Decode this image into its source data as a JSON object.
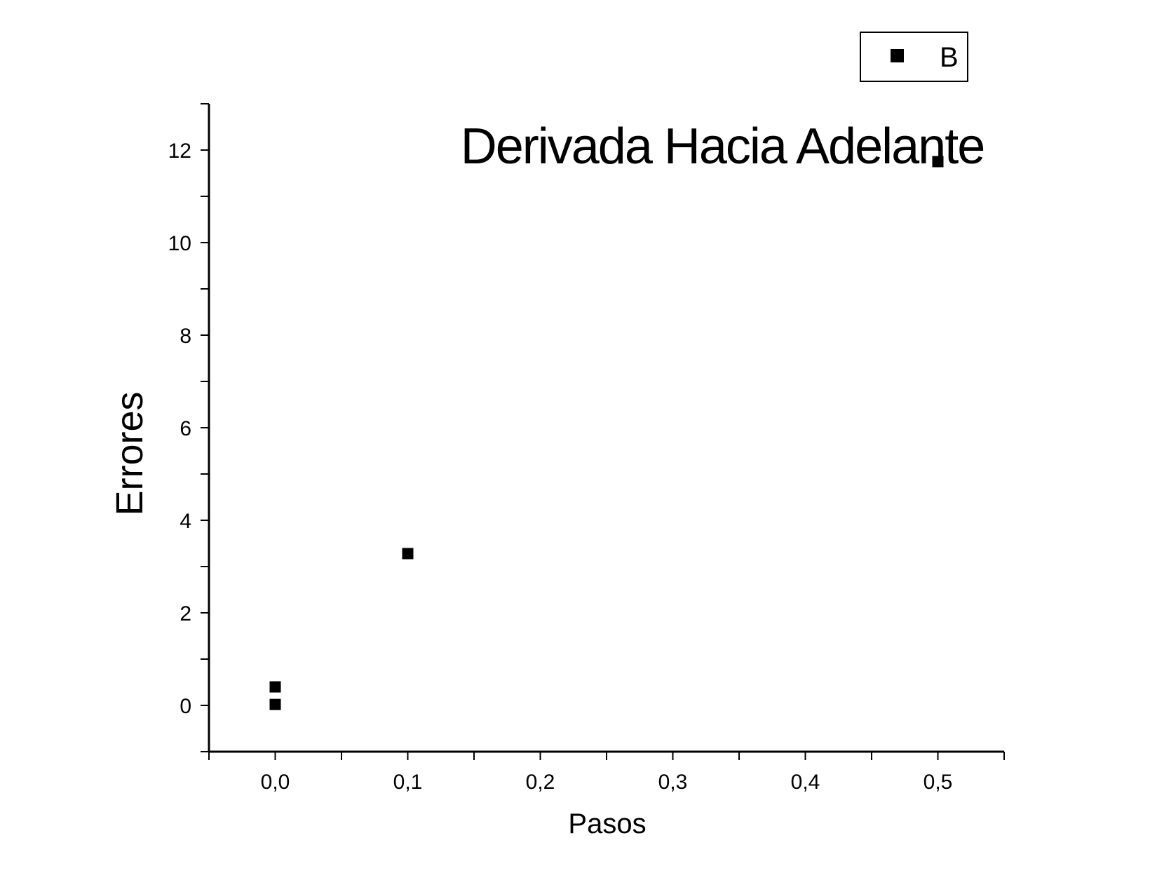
{
  "chart_data": {
    "type": "scatter",
    "title": "Derivada Hacia Adelante",
    "xlabel": "Pasos",
    "ylabel": "Errores",
    "xlim": [
      -0.05,
      0.55
    ],
    "ylim": [
      -1,
      13
    ],
    "x_ticks": [
      0.0,
      0.1,
      0.2,
      0.3,
      0.4,
      0.5
    ],
    "x_tick_labels": [
      "0,0",
      "0,1",
      "0,2",
      "0,3",
      "0,4",
      "0,5"
    ],
    "y_ticks": [
      0,
      2,
      4,
      6,
      8,
      10,
      12
    ],
    "y_tick_labels": [
      "0",
      "2",
      "4",
      "6",
      "8",
      "10",
      "12"
    ],
    "grid": false,
    "legend_position": "top-right",
    "series": [
      {
        "name": "B",
        "marker": "square",
        "color": "#000000",
        "points": [
          {
            "x": 0.0,
            "y": 0.4
          },
          {
            "x": 0.0,
            "y": 0.02
          },
          {
            "x": 0.1,
            "y": 3.28
          },
          {
            "x": 0.5,
            "y": 11.75
          }
        ]
      }
    ]
  }
}
